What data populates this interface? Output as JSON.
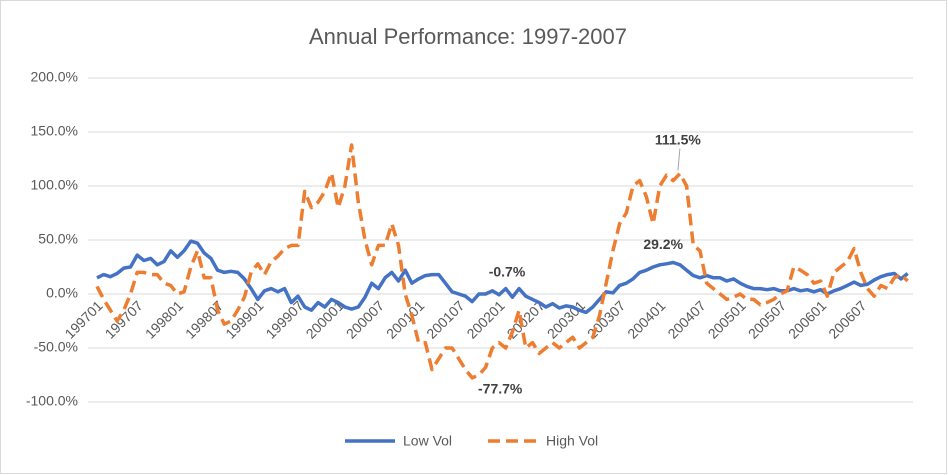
{
  "chart_data": {
    "type": "line",
    "title": "Annual Performance:  1997-2007",
    "categories": [
      "199701",
      null,
      null,
      null,
      null,
      null,
      "199707",
      null,
      null,
      null,
      null,
      null,
      "199801",
      null,
      null,
      null,
      null,
      null,
      "199807",
      null,
      null,
      null,
      null,
      null,
      "199901",
      null,
      null,
      null,
      null,
      null,
      "199907",
      null,
      null,
      null,
      null,
      null,
      "200001",
      null,
      null,
      null,
      null,
      null,
      "200007",
      null,
      null,
      null,
      null,
      null,
      "200101",
      null,
      null,
      null,
      null,
      null,
      "200107",
      null,
      null,
      null,
      null,
      null,
      "200201",
      null,
      null,
      null,
      null,
      null,
      "200207",
      null,
      null,
      null,
      null,
      null,
      "200301",
      null,
      null,
      null,
      null,
      null,
      "200307",
      null,
      null,
      null,
      null,
      null,
      "200401",
      null,
      null,
      null,
      null,
      null,
      "200407",
      null,
      null,
      null,
      null,
      null,
      "200501",
      null,
      null,
      null,
      null,
      null,
      "200507",
      null,
      null,
      null,
      null,
      null,
      "200601",
      null,
      null,
      null,
      null,
      null,
      "200607",
      null,
      null,
      null,
      null,
      null,
      null,
      null
    ],
    "series": [
      {
        "name": "Low Vol",
        "color": "#4472c4",
        "dash": false,
        "values": [
          15,
          18,
          16,
          19,
          24,
          25,
          36,
          31,
          33,
          27,
          30,
          40,
          34,
          40,
          49,
          47,
          38,
          33,
          22,
          20,
          21,
          20,
          14,
          5,
          -5,
          3,
          5,
          2,
          5,
          -8,
          -2,
          -12,
          -15,
          -8,
          -12,
          -5,
          -8,
          -12,
          -14,
          -12,
          -3,
          10,
          5,
          15,
          20,
          12,
          22,
          10,
          14,
          17,
          18,
          18,
          10,
          2,
          0,
          -2,
          -7,
          0,
          0,
          3,
          -0.7,
          5,
          -3,
          5,
          -2,
          -5,
          -8,
          -12,
          -9,
          -13,
          -11,
          -12,
          -15,
          -17,
          -12,
          -5,
          2,
          1,
          8,
          10,
          14,
          20,
          22,
          25,
          27,
          28,
          29.2,
          27,
          22,
          17,
          15,
          17,
          15,
          15,
          12,
          14,
          10,
          7,
          5,
          5,
          4,
          5,
          3,
          3,
          5,
          3,
          4,
          2,
          4,
          0,
          3,
          5,
          8,
          11,
          8,
          9,
          13,
          16,
          18,
          19,
          14,
          19
        ],
        "value_labels": {
          "60": "-0.7%",
          "86": "29.2%"
        }
      },
      {
        "name": "High Vol",
        "color": "#ed7d31",
        "dash": true,
        "values": [
          7,
          -5,
          -15,
          -25,
          -15,
          0,
          20,
          20,
          18,
          18,
          10,
          8,
          0,
          2,
          25,
          40,
          15,
          15,
          -15,
          -28,
          -25,
          -15,
          -3,
          20,
          28,
          18,
          30,
          35,
          42,
          45,
          45,
          95,
          80,
          85,
          95,
          112,
          80,
          100,
          138,
          85,
          50,
          27,
          45,
          45,
          65,
          45,
          0,
          -20,
          -45,
          -45,
          -70,
          -60,
          -50,
          -50,
          -60,
          -70,
          -77.7,
          -75,
          -68,
          -50,
          -45,
          -50,
          -35,
          -15,
          -50,
          -45,
          -55,
          -50,
          -45,
          -50,
          -45,
          -40,
          -50,
          -45,
          -40,
          -20,
          10,
          40,
          65,
          75,
          100,
          105,
          90,
          65,
          100,
          110,
          105,
          111.5,
          100,
          45,
          40,
          10,
          5,
          0,
          -5,
          -3,
          0,
          -5,
          -5,
          -10,
          -8,
          -5,
          0,
          3,
          25,
          22,
          18,
          10,
          12,
          -2,
          20,
          25,
          30,
          42,
          20,
          5,
          -2,
          8,
          5,
          15,
          18,
          12
        ],
        "value_labels": {
          "56": "-77.7%",
          "87": "111.5%"
        }
      }
    ],
    "ylim": [
      -100,
      200
    ],
    "yticks": [
      {
        "value": -100,
        "label": "-100.0%"
      },
      {
        "value": -50,
        "label": "-50.0%"
      },
      {
        "value": 0,
        "label": "0.0%"
      },
      {
        "value": 50,
        "label": "50.0%"
      },
      {
        "value": 100,
        "label": "100.0%"
      },
      {
        "value": 150,
        "label": "150.0%"
      },
      {
        "value": 200,
        "label": "200.0%"
      }
    ],
    "grid": true,
    "legend": "bottom"
  }
}
